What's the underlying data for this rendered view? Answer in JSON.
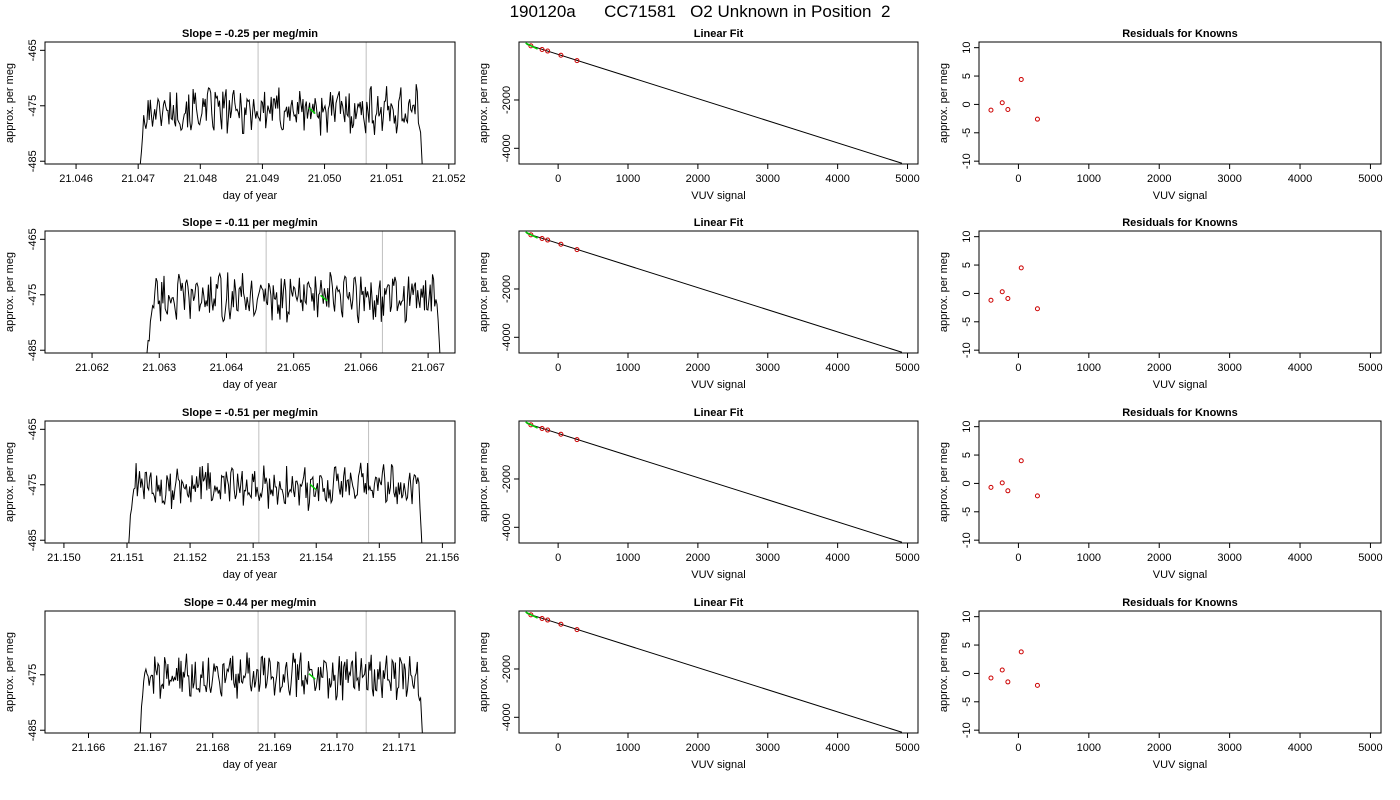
{
  "title": "190120a      CC71581   O2 Unknown in Position  2",
  "panel_titles": {
    "linear_fit": "Linear Fit",
    "residuals": "Residuals for Knowns"
  },
  "axis_labels": {
    "time_x": "day of year",
    "per_meg_y": "approx. per meg",
    "vuv_x": "VUV signal"
  },
  "colors": {
    "trace": "#000000",
    "highlight": "#00cc00",
    "points": "#cc0000",
    "vline": "#bfbfbf"
  },
  "chart_data": [
    {
      "row": 1,
      "time_series": {
        "type": "line",
        "title": "Slope =  -0.25  per meg/min",
        "xlabel": "day of year",
        "ylabel": "approx. per meg",
        "xlim": [
          21.0455,
          21.0521
        ],
        "ylim": [
          -485.5,
          -463.5
        ],
        "xticks": [
          "21.046",
          "21.047",
          "21.048",
          "21.049",
          "21.050",
          "21.051",
          "21.052"
        ],
        "yticks": [
          "-465",
          "-475",
          "-485"
        ],
        "vlines": [
          21.04893,
          21.05067
        ],
        "start": 21.047,
        "end": 21.0516,
        "level": -475.8,
        "highlight": [
          21.04975,
          21.04985
        ]
      },
      "linear_fit": {
        "type": "scatter",
        "title": "Linear Fit",
        "xlabel": "VUV signal",
        "ylabel": "approx. per meg",
        "xlim": [
          -560,
          5150
        ],
        "ylim": [
          -4650,
          400
        ],
        "xticks": [
          "0",
          "1000",
          "2000",
          "3000",
          "4000",
          "5000"
        ],
        "yticks": [
          "-2000",
          "-4000"
        ],
        "line": [
          [
            -450,
            300
          ],
          [
            4920,
            -4620
          ]
        ],
        "known_points": [
          [
            -390,
            240
          ],
          [
            -230,
            90
          ],
          [
            -150,
            25
          ],
          [
            40,
            -150
          ],
          [
            270,
            -370
          ]
        ],
        "unknown_point": [
          -380,
          230
        ]
      },
      "residuals": {
        "type": "scatter",
        "title": "Residuals for Knowns",
        "xlabel": "VUV signal",
        "ylabel": "approx. per meg",
        "xlim": [
          -560,
          5150
        ],
        "ylim": [
          -10.5,
          11
        ],
        "xticks": [
          "0",
          "1000",
          "2000",
          "3000",
          "4000",
          "5000"
        ],
        "yticks": [
          "10",
          "5",
          "0",
          "-5",
          "-10"
        ],
        "points": [
          [
            -390,
            -1.0
          ],
          [
            -230,
            0.3
          ],
          [
            -150,
            -0.9
          ],
          [
            40,
            4.4
          ],
          [
            270,
            -2.6
          ]
        ]
      }
    },
    {
      "row": 2,
      "time_series": {
        "type": "line",
        "title": "Slope =  -0.11  per meg/min",
        "xlabel": "day of year",
        "ylabel": "approx. per meg",
        "xlim": [
          21.0613,
          21.0674
        ],
        "ylim": [
          -485.5,
          -463.5
        ],
        "xticks": [
          "21.062",
          "21.063",
          "21.064",
          "21.065",
          "21.066",
          "21.067"
        ],
        "yticks": [
          "-465",
          "-475",
          "-485"
        ],
        "vlines": [
          21.06459,
          21.06632
        ],
        "start": 21.0628,
        "end": 21.0672,
        "level": -475.5,
        "highlight": [
          21.0654,
          21.0655
        ]
      },
      "linear_fit": {
        "type": "scatter",
        "title": "Linear Fit",
        "xlabel": "VUV signal",
        "ylabel": "approx. per meg",
        "xlim": [
          -560,
          5150
        ],
        "ylim": [
          -4650,
          400
        ],
        "xticks": [
          "0",
          "1000",
          "2000",
          "3000",
          "4000",
          "5000"
        ],
        "yticks": [
          "-2000",
          "-4000"
        ],
        "line": [
          [
            -450,
            300
          ],
          [
            4920,
            -4620
          ]
        ],
        "known_points": [
          [
            -390,
            240
          ],
          [
            -230,
            90
          ],
          [
            -150,
            25
          ],
          [
            40,
            -150
          ],
          [
            270,
            -370
          ]
        ],
        "unknown_point": [
          -380,
          230
        ]
      },
      "residuals": {
        "type": "scatter",
        "title": "Residuals for Knowns",
        "xlabel": "VUV signal",
        "ylabel": "approx. per meg",
        "xlim": [
          -560,
          5150
        ],
        "ylim": [
          -10.5,
          11
        ],
        "xticks": [
          "0",
          "1000",
          "2000",
          "3000",
          "4000",
          "5000"
        ],
        "yticks": [
          "10",
          "5",
          "0",
          "-5",
          "-10"
        ],
        "points": [
          [
            -390,
            -1.2
          ],
          [
            -230,
            0.3
          ],
          [
            -150,
            -0.9
          ],
          [
            40,
            4.5
          ],
          [
            270,
            -2.7
          ]
        ]
      }
    },
    {
      "row": 3,
      "time_series": {
        "type": "line",
        "title": "Slope =  -0.51  per meg/min",
        "xlabel": "day of year",
        "ylabel": "approx. per meg",
        "xlim": [
          21.1497,
          21.1562
        ],
        "ylim": [
          -485.5,
          -463.5
        ],
        "xticks": [
          "21.150",
          "21.151",
          "21.152",
          "21.153",
          "21.154",
          "21.155",
          "21.156"
        ],
        "yticks": [
          "-465",
          "-475",
          "-485"
        ],
        "vlines": [
          21.15309,
          21.15483
        ],
        "start": 21.151,
        "end": 21.1557,
        "level": -475.3,
        "highlight": [
          21.1539,
          21.154
        ]
      },
      "linear_fit": {
        "type": "scatter",
        "title": "Linear Fit",
        "xlabel": "VUV signal",
        "ylabel": "approx. per meg",
        "xlim": [
          -560,
          5150
        ],
        "ylim": [
          -4650,
          400
        ],
        "xticks": [
          "0",
          "1000",
          "2000",
          "3000",
          "4000",
          "5000"
        ],
        "yticks": [
          "-2000",
          "-4000"
        ],
        "line": [
          [
            -450,
            300
          ],
          [
            4920,
            -4620
          ]
        ],
        "known_points": [
          [
            -390,
            240
          ],
          [
            -230,
            90
          ],
          [
            -150,
            25
          ],
          [
            40,
            -150
          ],
          [
            270,
            -370
          ]
        ],
        "unknown_point": [
          -380,
          230
        ]
      },
      "residuals": {
        "type": "scatter",
        "title": "Residuals for Knowns",
        "xlabel": "VUV signal",
        "ylabel": "approx. per meg",
        "xlim": [
          -560,
          5150
        ],
        "ylim": [
          -10.5,
          11
        ],
        "xticks": [
          "0",
          "1000",
          "2000",
          "3000",
          "4000",
          "5000"
        ],
        "yticks": [
          "10",
          "5",
          "0",
          "-5",
          "-10"
        ],
        "points": [
          [
            -390,
            -0.7
          ],
          [
            -230,
            0.1
          ],
          [
            -150,
            -1.3
          ],
          [
            40,
            4.0
          ],
          [
            270,
            -2.2
          ]
        ]
      }
    },
    {
      "row": 4,
      "time_series": {
        "type": "line",
        "title": "Slope =  0.44  per meg/min",
        "xlabel": "day of year",
        "ylabel": "approx. per meg",
        "xlim": [
          21.1653,
          21.1719
        ],
        "ylim": [
          -485.5,
          -463.5
        ],
        "xticks": [
          "21.166",
          "21.167",
          "21.168",
          "21.169",
          "21.170",
          "21.171"
        ],
        "yticks": [
          "-475",
          "-485"
        ],
        "vlines": [
          21.16873,
          21.17047
        ],
        "start": 21.1668,
        "end": 21.1714,
        "level": -475.2,
        "highlight": [
          21.16955,
          21.16965
        ]
      },
      "linear_fit": {
        "type": "scatter",
        "title": "Linear Fit",
        "xlabel": "VUV signal",
        "ylabel": "approx. per meg",
        "xlim": [
          -560,
          5150
        ],
        "ylim": [
          -4650,
          400
        ],
        "xticks": [
          "0",
          "1000",
          "2000",
          "3000",
          "4000",
          "5000"
        ],
        "yticks": [
          "-2000",
          "-4000"
        ],
        "line": [
          [
            -450,
            300
          ],
          [
            4920,
            -4620
          ]
        ],
        "known_points": [
          [
            -390,
            240
          ],
          [
            -230,
            90
          ],
          [
            -150,
            25
          ],
          [
            40,
            -150
          ],
          [
            270,
            -370
          ]
        ],
        "unknown_point": [
          -380,
          230
        ]
      },
      "residuals": {
        "type": "scatter",
        "title": "Residuals for Knowns",
        "xlabel": "VUV signal",
        "ylabel": "approx. per meg",
        "xlim": [
          -560,
          5150
        ],
        "ylim": [
          -10.5,
          11
        ],
        "xticks": [
          "0",
          "1000",
          "2000",
          "3000",
          "4000",
          "5000"
        ],
        "yticks": [
          "10",
          "5",
          "0",
          "-5",
          "-10"
        ],
        "points": [
          [
            -390,
            -0.8
          ],
          [
            -230,
            0.6
          ],
          [
            -150,
            -1.5
          ],
          [
            40,
            3.8
          ],
          [
            270,
            -2.1
          ]
        ]
      }
    }
  ]
}
